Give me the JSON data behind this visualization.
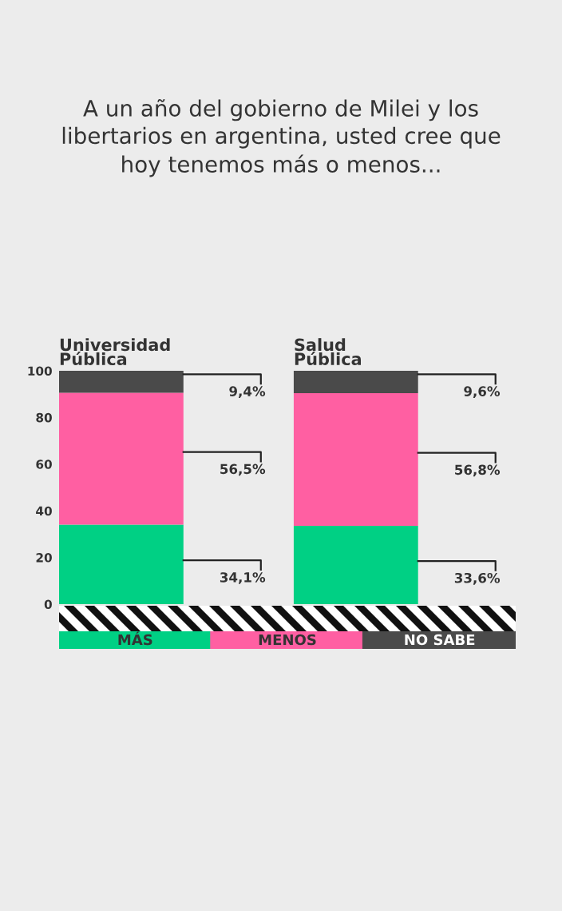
{
  "chart_data": {
    "type": "bar",
    "stacked": true,
    "title": "A un año del gobierno de Milei y los\nlibertarios en argentina, usted cree que\nhoy tenemos más o menos...",
    "categories": [
      "Universidad\nPública",
      "Salud\nPública"
    ],
    "series": [
      {
        "name": "MÁS",
        "color": "#00d084",
        "values": [
          34.1,
          33.6
        ],
        "value_labels": [
          "34,1%",
          "33,6%"
        ]
      },
      {
        "name": "MENOS",
        "color": "#ff5fa2",
        "values": [
          56.5,
          56.8
        ],
        "value_labels": [
          "56,5%",
          "56,8%"
        ]
      },
      {
        "name": "NO SABE",
        "color": "#4a4a4a",
        "values": [
          9.4,
          9.6
        ],
        "value_labels": [
          "9,4%",
          "9,6%"
        ]
      }
    ],
    "ylim": [
      0,
      100
    ],
    "yticks": [
      0,
      20,
      40,
      60,
      80,
      100
    ],
    "grid": false,
    "legend": "bottom"
  }
}
